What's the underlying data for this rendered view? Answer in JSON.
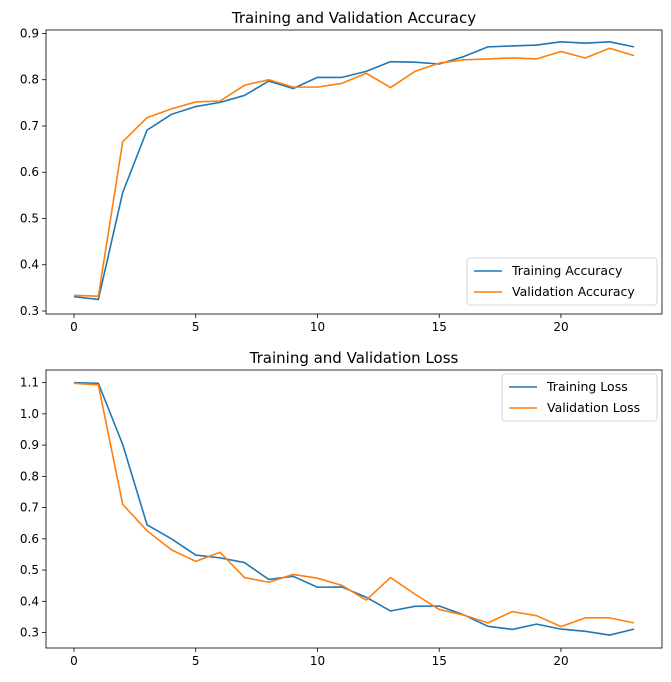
{
  "chart_data": [
    {
      "type": "line",
      "title": "Training and Validation Accuracy",
      "xlabel": "",
      "ylabel": "",
      "xlim": [
        -1.15,
        24.15
      ],
      "ylim": [
        0.2935,
        0.9075
      ],
      "xticks": [
        0,
        5,
        10,
        15,
        20
      ],
      "yticks": [
        0.3,
        0.4,
        0.5,
        0.6,
        0.7,
        0.8,
        0.9
      ],
      "ytick_labels": [
        "0.3",
        "0.4",
        "0.5",
        "0.6",
        "0.7",
        "0.8",
        "0.9"
      ],
      "grid": false,
      "legend": "lower-right",
      "x": [
        0,
        1,
        2,
        3,
        4,
        5,
        6,
        7,
        8,
        9,
        10,
        11,
        12,
        13,
        14,
        15,
        16,
        17,
        18,
        19,
        20,
        21,
        22,
        23
      ],
      "series": [
        {
          "name": "Training Accuracy",
          "color": "#1f77b4",
          "values": [
            0.331,
            0.325,
            0.556,
            0.691,
            0.725,
            0.742,
            0.751,
            0.766,
            0.797,
            0.781,
            0.805,
            0.805,
            0.818,
            0.839,
            0.838,
            0.834,
            0.85,
            0.871,
            0.873,
            0.875,
            0.882,
            0.879,
            0.882,
            0.871
          ]
        },
        {
          "name": "Validation Accuracy",
          "color": "#ff7f0e",
          "values": [
            0.334,
            0.332,
            0.666,
            0.718,
            0.737,
            0.752,
            0.754,
            0.788,
            0.8,
            0.784,
            0.784,
            0.792,
            0.814,
            0.783,
            0.818,
            0.836,
            0.843,
            0.845,
            0.847,
            0.845,
            0.861,
            0.847,
            0.868,
            0.852
          ]
        }
      ]
    },
    {
      "type": "line",
      "title": "Training and Validation Loss",
      "xlabel": "",
      "ylabel": "",
      "xlim": [
        -1.15,
        24.15
      ],
      "ylim": [
        0.2505,
        1.1405
      ],
      "xticks": [
        0,
        5,
        10,
        15,
        20
      ],
      "yticks": [
        0.3,
        0.4,
        0.5,
        0.6,
        0.7,
        0.8,
        0.9,
        1.0,
        1.1
      ],
      "ytick_labels": [
        "0.3",
        "0.4",
        "0.5",
        "0.6",
        "0.7",
        "0.8",
        "0.9",
        "1.0",
        "1.1"
      ],
      "grid": false,
      "legend": "top-right",
      "x": [
        0,
        1,
        2,
        3,
        4,
        5,
        6,
        7,
        8,
        9,
        10,
        11,
        12,
        13,
        14,
        15,
        16,
        17,
        18,
        19,
        20,
        21,
        22,
        23
      ],
      "series": [
        {
          "name": "Training Loss",
          "color": "#1f77b4",
          "values": [
            1.1,
            1.098,
            0.902,
            0.645,
            0.6,
            0.548,
            0.539,
            0.524,
            0.47,
            0.48,
            0.445,
            0.446,
            0.413,
            0.369,
            0.384,
            0.385,
            0.357,
            0.32,
            0.31,
            0.327,
            0.311,
            0.304,
            0.292,
            0.311
          ]
        },
        {
          "name": "Validation Loss",
          "color": "#ff7f0e",
          "values": [
            1.098,
            1.093,
            0.71,
            0.626,
            0.565,
            0.528,
            0.557,
            0.476,
            0.461,
            0.486,
            0.474,
            0.451,
            0.404,
            0.476,
            0.423,
            0.374,
            0.356,
            0.331,
            0.367,
            0.354,
            0.319,
            0.347,
            0.347,
            0.331
          ]
        }
      ]
    }
  ]
}
